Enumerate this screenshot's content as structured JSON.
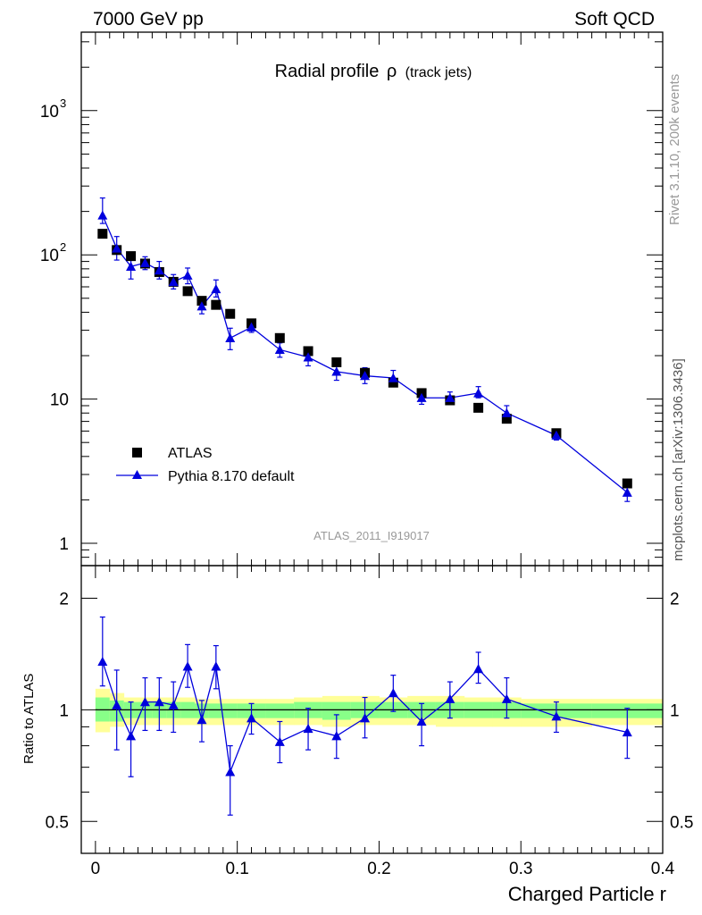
{
  "header": {
    "energy": "7000 GeV pp",
    "category": "Soft QCD"
  },
  "side_labels": {
    "rivet": "Rivet 3.1.10,  200k events",
    "mcplots": "mcplots.cern.ch [arXiv:1306.3436]"
  },
  "chart_data": [
    {
      "type": "scatter",
      "title": "Radial profile",
      "title_symbol": "ρ",
      "subtitle": "(track jets)",
      "analysis_id": "ATLAS_2011_I919017",
      "yscale": "log",
      "xlim": [
        -0.01,
        0.4
      ],
      "ylim": [
        0.7,
        3500
      ],
      "y_ticks": [
        {
          "value": 1,
          "label": "1",
          "sup": ""
        },
        {
          "value": 10,
          "label": "10",
          "sup": ""
        },
        {
          "value": 100,
          "label": "10",
          "sup": "2"
        },
        {
          "value": 1000,
          "label": "10",
          "sup": "3"
        }
      ],
      "legend": [
        {
          "label": "ATLAS",
          "marker": "square",
          "color": "#000000"
        },
        {
          "label": "Pythia 8.170 default",
          "marker": "triangle",
          "color": "#0000dd"
        }
      ],
      "legend_position": "lower-left",
      "series": [
        {
          "name": "ATLAS",
          "marker": "square",
          "color": "#000000",
          "x": [
            0.005,
            0.015,
            0.025,
            0.035,
            0.045,
            0.055,
            0.065,
            0.075,
            0.085,
            0.095,
            0.11,
            0.13,
            0.15,
            0.17,
            0.19,
            0.21,
            0.23,
            0.25,
            0.27,
            0.29,
            0.325,
            0.375
          ],
          "y": [
            140,
            108,
            98,
            87,
            76,
            65,
            56,
            48,
            45,
            39,
            33.5,
            26.5,
            21.5,
            18,
            15.2,
            13,
            11,
            9.8,
            8.7,
            7.3,
            5.8,
            2.6
          ]
        },
        {
          "name": "Pythia 8.170 default",
          "marker": "triangle",
          "color": "#0000dd",
          "x": [
            0.005,
            0.015,
            0.025,
            0.035,
            0.045,
            0.055,
            0.065,
            0.075,
            0.085,
            0.095,
            0.11,
            0.13,
            0.15,
            0.17,
            0.19,
            0.21,
            0.23,
            0.25,
            0.27,
            0.29,
            0.325,
            0.375
          ],
          "y": [
            188,
            111,
            83,
            88,
            78,
            65,
            72,
            44,
            58,
            26.5,
            31.5,
            22,
            19.5,
            15.5,
            14.5,
            14,
            10.2,
            10.2,
            11,
            8,
            5.6,
            2.25
          ],
          "err_lo": [
            165,
            92,
            68,
            79,
            68,
            58,
            63,
            39,
            51,
            22,
            29,
            19.5,
            17,
            13.5,
            12.8,
            12.5,
            9.2,
            9.3,
            10.2,
            7.3,
            5.2,
            1.95
          ],
          "err_hi": [
            248,
            134,
            99,
            97,
            90,
            73,
            81,
            50,
            67,
            31,
            34,
            24.5,
            22,
            17.5,
            16.5,
            15.8,
            11.4,
            11.2,
            12.2,
            9,
            6.1,
            2.55
          ]
        }
      ]
    },
    {
      "type": "scatter",
      "ylabel": "Ratio to ATLAS",
      "xlabel": "Charged Particle r",
      "yscale": "log",
      "xlim": [
        -0.01,
        0.4
      ],
      "ylim": [
        0.41,
        2.45
      ],
      "x_ticks": [
        {
          "value": 0,
          "label": "0"
        },
        {
          "value": 0.1,
          "label": "0.1"
        },
        {
          "value": 0.2,
          "label": "0.2"
        },
        {
          "value": 0.3,
          "label": "0.3"
        },
        {
          "value": 0.4,
          "label": "0.4"
        }
      ],
      "y_ticks": [
        {
          "value": 0.5,
          "label": "0.5"
        },
        {
          "value": 1,
          "label": "1"
        },
        {
          "value": 2,
          "label": "2"
        }
      ],
      "bands": {
        "edges": [
          0.0,
          0.01,
          0.02,
          0.03,
          0.04,
          0.05,
          0.06,
          0.07,
          0.08,
          0.09,
          0.1,
          0.12,
          0.14,
          0.16,
          0.18,
          0.2,
          0.22,
          0.24,
          0.26,
          0.28,
          0.3,
          0.35,
          0.4
        ],
        "yellow_lo": [
          0.87,
          0.9,
          0.91,
          0.91,
          0.91,
          0.91,
          0.91,
          0.91,
          0.91,
          0.91,
          0.91,
          0.91,
          0.91,
          0.9,
          0.91,
          0.91,
          0.91,
          0.9,
          0.9,
          0.9,
          0.9,
          0.91
        ],
        "yellow_hi": [
          1.14,
          1.11,
          1.08,
          1.08,
          1.08,
          1.08,
          1.08,
          1.07,
          1.07,
          1.07,
          1.07,
          1.07,
          1.08,
          1.09,
          1.09,
          1.08,
          1.09,
          1.09,
          1.08,
          1.08,
          1.07,
          1.07
        ],
        "green_lo": [
          0.93,
          0.93,
          0.95,
          0.95,
          0.95,
          0.95,
          0.95,
          0.95,
          0.95,
          0.95,
          0.95,
          0.95,
          0.95,
          0.94,
          0.95,
          0.95,
          0.95,
          0.95,
          0.95,
          0.95,
          0.95,
          0.95
        ],
        "green_hi": [
          1.08,
          1.06,
          1.05,
          1.05,
          1.05,
          1.05,
          1.05,
          1.04,
          1.04,
          1.04,
          1.04,
          1.04,
          1.05,
          1.05,
          1.05,
          1.05,
          1.05,
          1.05,
          1.05,
          1.05,
          1.04,
          1.04
        ],
        "colors": {
          "yellow": "#ffff99",
          "green": "#88ff88"
        }
      },
      "reference_line": 1,
      "series": [
        {
          "name": "Pythia 8.170 default",
          "marker": "triangle",
          "color": "#0000dd",
          "x": [
            0.005,
            0.015,
            0.025,
            0.035,
            0.045,
            0.055,
            0.065,
            0.075,
            0.085,
            0.095,
            0.11,
            0.13,
            0.15,
            0.17,
            0.19,
            0.21,
            0.23,
            0.25,
            0.27,
            0.29,
            0.325,
            0.375
          ],
          "y": [
            1.35,
            1.03,
            0.85,
            1.05,
            1.05,
            1.03,
            1.31,
            0.94,
            1.31,
            0.68,
            0.95,
            0.82,
            0.89,
            0.85,
            0.95,
            1.11,
            0.93,
            1.07,
            1.29,
            1.07,
            0.96,
            0.87
          ],
          "err_lo": [
            1.16,
            0.78,
            0.66,
            0.88,
            0.88,
            0.87,
            1.15,
            0.82,
            1.14,
            0.52,
            0.86,
            0.72,
            0.78,
            0.74,
            0.84,
            0.99,
            0.8,
            0.95,
            1.18,
            0.95,
            0.87,
            0.74
          ],
          "err_hi": [
            1.78,
            1.28,
            1.05,
            1.22,
            1.22,
            1.19,
            1.5,
            1.06,
            1.49,
            0.8,
            1.04,
            0.93,
            1.01,
            0.97,
            1.08,
            1.24,
            1.04,
            1.19,
            1.43,
            1.22,
            1.05,
            1.01
          ]
        }
      ]
    }
  ]
}
